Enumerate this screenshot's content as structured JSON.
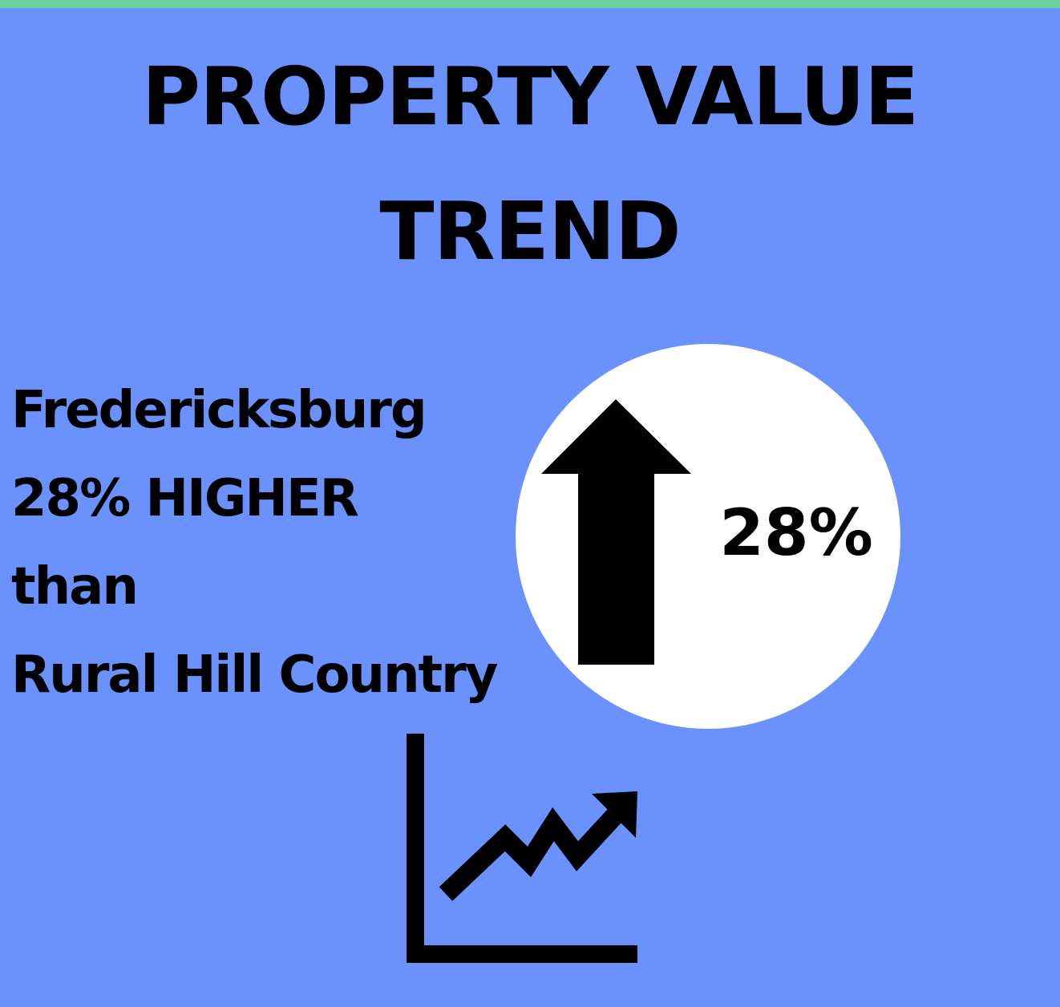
{
  "title": [
    "PROPERTY VALUE",
    "TREND"
  ],
  "comparison": [
    "Fredericksburg",
    "28% HIGHER",
    "than",
    "Rural Hill Country"
  ],
  "badge": "28%"
}
